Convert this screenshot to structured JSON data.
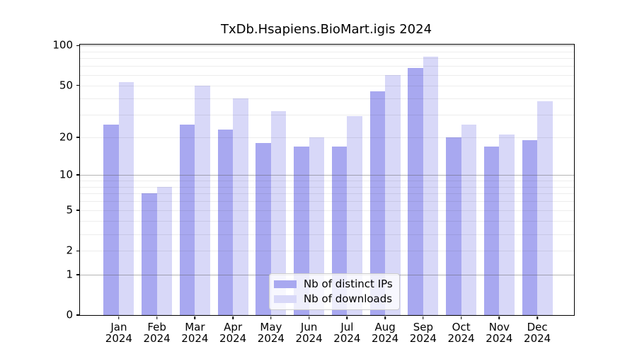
{
  "title": "TxDb.Hsapiens.BioMart.igis 2024",
  "chart_data": {
    "type": "bar",
    "title": "TxDb.Hsapiens.BioMart.igis 2024",
    "categories": [
      "Jan",
      "Feb",
      "Mar",
      "Apr",
      "May",
      "Jun",
      "Jul",
      "Aug",
      "Sep",
      "Oct",
      "Nov",
      "Dec"
    ],
    "year": "2024",
    "series": [
      {
        "name": "Nb of distinct IPs",
        "color": "#a8a8f0",
        "values": [
          25,
          7,
          25,
          23,
          18,
          17,
          17,
          45,
          68,
          20,
          17,
          19
        ]
      },
      {
        "name": "Nb of downloads",
        "color": "#d8d8f8",
        "values": [
          53,
          8,
          50,
          40,
          32,
          20,
          29,
          60,
          82,
          25,
          21,
          38
        ]
      }
    ],
    "xlabel": "",
    "ylabel": "",
    "yscale": "log1p",
    "yticks": [
      0,
      1,
      2,
      5,
      10,
      20,
      50,
      100
    ],
    "ylim": [
      0,
      101.5
    ],
    "grid": "horizontal",
    "legend_position": "inside-bottom-center"
  }
}
